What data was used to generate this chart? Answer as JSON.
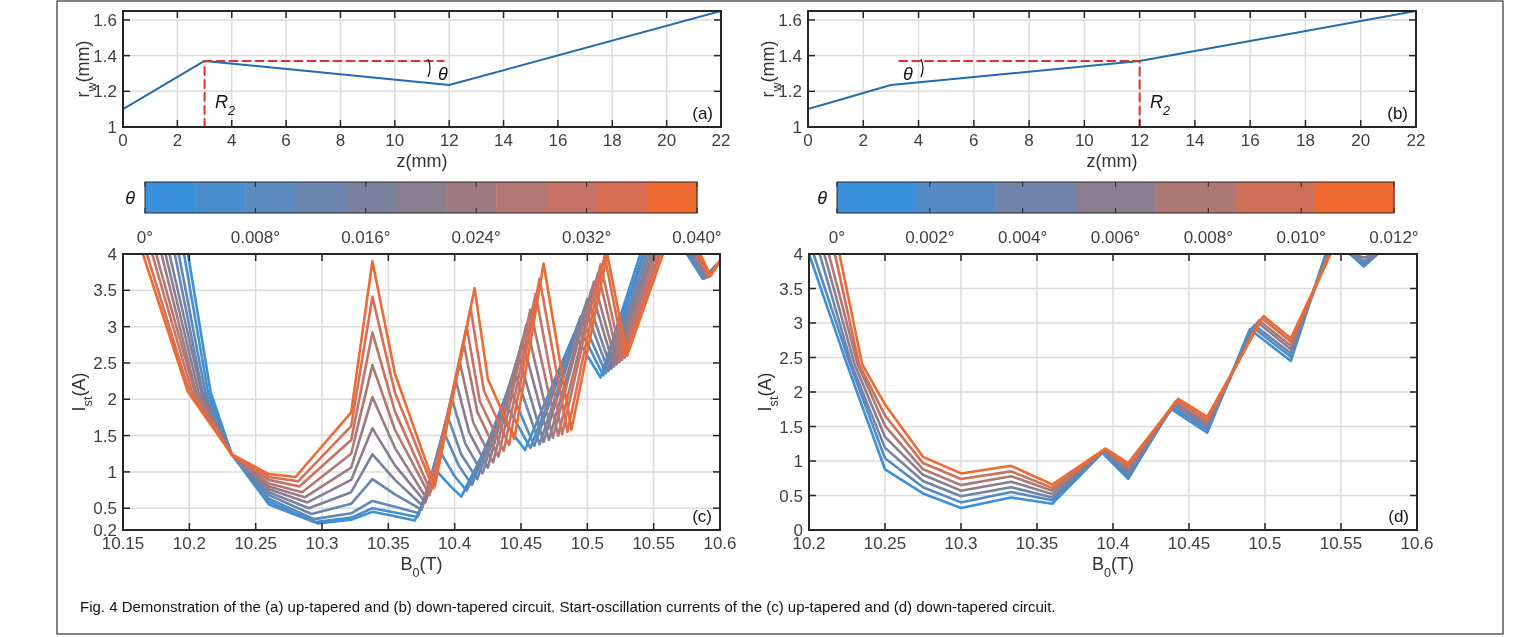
{
  "chart_data": [
    {
      "type": "line",
      "xlabel": "z(mm)",
      "ylabel": "r$_{w}$(mm)",
      "xlim": [
        0,
        22
      ],
      "ylim": [
        1,
        1.65
      ],
      "xticks": [
        0,
        2,
        4,
        6,
        8,
        10,
        12,
        14,
        16,
        18,
        20,
        22
      ],
      "yticks": [
        1,
        1.2,
        1.4,
        1.6
      ],
      "grid": true,
      "series": [
        {
          "color": "#1f6cb0",
          "x": [
            0,
            3,
            12,
            22
          ],
          "values": [
            1.1,
            1.37,
            1.235,
            1.65
          ]
        },
        {
          "color": "#e0312a",
          "line_style": "dashed",
          "x": [
            3,
            3,
            11.8
          ],
          "values": [
            1,
            1.37,
            1.37
          ]
        }
      ],
      "annotations": [
        "(a)",
        "θ",
        "R$_{2}$"
      ]
    },
    {
      "type": "line",
      "xlabel": "z(mm)",
      "ylabel": "r$_{w}$(mm)",
      "xlim": [
        0,
        22
      ],
      "ylim": [
        1,
        1.65
      ],
      "xticks": [
        0,
        2,
        4,
        6,
        8,
        10,
        12,
        14,
        16,
        18,
        20,
        22
      ],
      "yticks": [
        1,
        1.2,
        1.4,
        1.6
      ],
      "grid": true,
      "series": [
        {
          "color": "#1f6cb0",
          "x": [
            0,
            3,
            12,
            22
          ],
          "values": [
            1.1,
            1.235,
            1.37,
            1.65
          ]
        },
        {
          "color": "#e0312a",
          "line_style": "dashed",
          "x": [
            3.3,
            12,
            12
          ],
          "values": [
            1.37,
            1.37,
            1
          ]
        }
      ],
      "annotations": [
        "(b)",
        "θ",
        "R$_{2}$"
      ]
    },
    {
      "type": "line",
      "xlabel": "B$_{0}$(T)",
      "ylabel": "I$_{st}$(A)",
      "clabel": "θ",
      "clim": [
        0,
        0.04
      ],
      "cticks": [
        {
          "value": 0,
          "label": "0°"
        },
        {
          "value": 0.008,
          "label": "0.008°"
        },
        {
          "value": 0.016,
          "label": "0.016°"
        },
        {
          "value": 0.024,
          "label": "0.024°"
        },
        {
          "value": 0.032,
          "label": "0.032°"
        },
        {
          "value": 0.04,
          "label": "0.040°"
        }
      ],
      "xlim": [
        10.15,
        10.6
      ],
      "ylim": [
        0.2,
        4
      ],
      "xticks": [
        10.15,
        10.2,
        10.25,
        10.3,
        10.35,
        10.4,
        10.45,
        10.5,
        10.55,
        10.6
      ],
      "yticks": [
        0.2,
        0.5,
        1,
        1.5,
        2,
        2.5,
        3,
        3.5,
        4
      ],
      "grid": true,
      "series": [
        {
          "color": "#3a90db",
          "x": [
            10.199,
            10.216,
            10.232,
            10.26,
            10.297,
            10.322,
            10.338,
            10.355,
            10.37,
            10.387,
            10.397,
            10.405,
            10.435,
            10.453,
            10.49,
            10.51,
            10.54,
            10.565,
            10.575,
            10.587,
            10.6
          ],
          "values": [
            4,
            2.1,
            1.24,
            0.55,
            0.29,
            0.34,
            0.45,
            0.39,
            0.33,
            1.0,
            0.8,
            0.66,
            1.75,
            1.3,
            2.9,
            2.3,
            4,
            null,
            4,
            3.66,
            3.9
          ]
        },
        {
          "color": "#4a8dcc",
          "x": [
            10.196,
            10.214,
            10.232,
            10.26,
            10.295,
            10.322,
            10.338,
            10.355,
            10.372,
            10.39,
            10.4,
            10.409,
            10.438,
            10.457,
            10.493,
            10.512,
            10.542,
            10.565,
            10.576,
            10.588,
            10.6
          ],
          "values": [
            4,
            2.1,
            1.24,
            0.59,
            0.31,
            0.37,
            0.5,
            0.44,
            0.38,
            1.25,
            0.94,
            0.74,
            1.96,
            1.33,
            3.02,
            2.33,
            4,
            null,
            4,
            3.66,
            3.9
          ]
        },
        {
          "color": "#5a89bd",
          "x": [
            10.192,
            10.212,
            10.232,
            10.26,
            10.294,
            10.322,
            10.338,
            10.355,
            10.373,
            10.393,
            10.403,
            10.413,
            10.441,
            10.46,
            10.495,
            10.514,
            10.543,
            10.565,
            10.577,
            10.588,
            10.6
          ],
          "values": [
            4,
            2.1,
            1.24,
            0.63,
            0.35,
            0.43,
            0.6,
            0.52,
            0.43,
            1.5,
            1.09,
            0.82,
            2.17,
            1.36,
            3.14,
            2.36,
            4,
            null,
            4,
            3.67,
            3.9
          ]
        },
        {
          "color": "#6a85ae",
          "x": [
            10.189,
            10.21,
            10.232,
            10.26,
            10.292,
            10.322,
            10.338,
            10.355,
            10.375,
            10.395,
            10.405,
            10.417,
            10.445,
            10.464,
            10.498,
            10.516,
            10.545,
            10.565,
            10.578,
            10.589,
            10.6
          ],
          "values": [
            4,
            2.1,
            1.24,
            0.68,
            0.42,
            0.56,
            0.9,
            0.69,
            0.48,
            1.75,
            1.24,
            0.9,
            2.39,
            1.38,
            3.26,
            2.39,
            4,
            null,
            4,
            3.67,
            3.9
          ]
        },
        {
          "color": "#7a819f",
          "x": [
            10.185,
            10.209,
            10.232,
            10.26,
            10.29,
            10.322,
            10.338,
            10.355,
            10.376,
            10.398,
            10.408,
            10.421,
            10.448,
            10.467,
            10.5,
            10.518,
            10.547,
            10.565,
            10.579,
            10.589,
            10.6
          ],
          "values": [
            4,
            2.1,
            1.24,
            0.72,
            0.5,
            0.72,
            1.24,
            0.89,
            0.53,
            2.0,
            1.39,
            0.98,
            2.6,
            1.41,
            3.38,
            2.42,
            4,
            null,
            4,
            3.68,
            3.9
          ]
        },
        {
          "color": "#8a7d90",
          "x": [
            10.182,
            10.207,
            10.232,
            10.26,
            10.289,
            10.322,
            10.338,
            10.355,
            10.378,
            10.401,
            10.411,
            10.425,
            10.451,
            10.471,
            10.503,
            10.52,
            10.549,
            10.565,
            10.58,
            10.59,
            10.6
          ],
          "values": [
            4,
            2.1,
            1.24,
            0.76,
            0.58,
            0.89,
            1.6,
            1.09,
            0.58,
            2.25,
            1.54,
            1.06,
            2.81,
            1.44,
            3.5,
            2.45,
            4,
            null,
            4,
            3.68,
            3.9
          ]
        },
        {
          "color": "#9e7a82",
          "x": [
            10.179,
            10.205,
            10.232,
            10.26,
            10.287,
            10.322,
            10.338,
            10.355,
            10.379,
            10.404,
            10.414,
            10.429,
            10.454,
            10.474,
            10.505,
            10.522,
            10.55,
            10.565,
            10.581,
            10.591,
            10.6
          ],
          "values": [
            4,
            2.1,
            1.24,
            0.8,
            0.65,
            1.06,
            2.03,
            1.33,
            0.63,
            2.5,
            1.68,
            1.13,
            3.02,
            1.47,
            3.62,
            2.48,
            4,
            null,
            4,
            3.68,
            3.9
          ]
        },
        {
          "color": "#b27673",
          "x": [
            10.175,
            10.204,
            10.232,
            10.26,
            10.285,
            10.322,
            10.338,
            10.355,
            10.381,
            10.407,
            10.417,
            10.433,
            10.457,
            10.478,
            10.508,
            10.524,
            10.552,
            10.565,
            10.582,
            10.591,
            10.6
          ],
          "values": [
            4,
            2.1,
            1.24,
            0.84,
            0.72,
            1.25,
            2.47,
            1.58,
            0.68,
            2.75,
            1.83,
            1.21,
            3.23,
            1.5,
            3.74,
            2.51,
            4,
            null,
            4,
            3.69,
            3.9
          ]
        },
        {
          "color": "#c67264",
          "x": [
            10.172,
            10.202,
            10.232,
            10.26,
            10.283,
            10.322,
            10.338,
            10.355,
            10.382,
            10.409,
            10.419,
            10.437,
            10.461,
            10.481,
            10.51,
            10.526,
            10.554,
            10.565,
            10.583,
            10.592,
            10.6
          ],
          "values": [
            4,
            2.1,
            1.24,
            0.89,
            0.8,
            1.44,
            2.92,
            1.83,
            0.73,
            3.0,
            1.97,
            1.29,
            3.45,
            1.52,
            3.86,
            2.54,
            4,
            null,
            4,
            3.69,
            3.9
          ]
        },
        {
          "color": "#da6e55",
          "x": [
            10.168,
            10.2,
            10.232,
            10.26,
            10.282,
            10.322,
            10.338,
            10.355,
            10.384,
            10.412,
            10.422,
            10.441,
            10.464,
            10.485,
            10.513,
            10.528,
            10.555,
            10.565,
            10.584,
            10.592,
            10.6
          ],
          "values": [
            4,
            2.1,
            1.24,
            0.93,
            0.87,
            1.63,
            3.41,
            2.09,
            0.77,
            3.25,
            2.12,
            1.37,
            3.66,
            1.55,
            3.98,
            2.57,
            4,
            null,
            4,
            3.7,
            3.9
          ]
        },
        {
          "color": "#ee6a30",
          "x": [
            10.165,
            10.199,
            10.232,
            10.26,
            10.28,
            10.322,
            10.338,
            10.355,
            10.385,
            10.415,
            10.425,
            10.445,
            10.467,
            10.488,
            10.515,
            10.53,
            10.557,
            10.565,
            10.585,
            10.593,
            10.6
          ],
          "values": [
            4,
            2.1,
            1.24,
            0.97,
            0.93,
            1.82,
            3.9,
            2.35,
            0.8,
            3.53,
            2.28,
            1.45,
            3.87,
            1.58,
            4,
            2.6,
            4,
            null,
            4,
            3.7,
            3.9
          ]
        }
      ],
      "annotations": [
        "(c)"
      ]
    },
    {
      "type": "line",
      "xlabel": "B$_{0}$(T)",
      "ylabel": "I$_{st}$(A)",
      "clabel": "θ",
      "clim": [
        0,
        0.012
      ],
      "cticks": [
        {
          "value": 0,
          "label": "0°"
        },
        {
          "value": 0.002,
          "label": "0.002°"
        },
        {
          "value": 0.004,
          "label": "0.004°"
        },
        {
          "value": 0.006,
          "label": "0.006°"
        },
        {
          "value": 0.008,
          "label": "0.008°"
        },
        {
          "value": 0.01,
          "label": "0.010°"
        },
        {
          "value": 0.012,
          "label": "0.012°"
        }
      ],
      "xlim": [
        10.2,
        10.6
      ],
      "ylim": [
        0,
        4
      ],
      "xticks": [
        10.2,
        10.25,
        10.3,
        10.35,
        10.4,
        10.45,
        10.5,
        10.55,
        10.6
      ],
      "yticks": [
        0,
        0.5,
        1,
        1.5,
        2,
        2.5,
        3,
        3.5,
        4
      ],
      "grid": true,
      "series": [
        {
          "color": "#3a90db",
          "x": [
            10.2,
            10.225,
            10.25,
            10.275,
            10.3,
            10.333,
            10.36,
            10.393,
            10.41,
            10.438,
            10.462,
            10.49,
            10.517,
            10.54,
            10.55,
            10.556,
            10.565,
            10.574
          ],
          "values": [
            4,
            2.4,
            0.88,
            0.53,
            0.32,
            0.47,
            0.38,
            1.12,
            0.74,
            1.76,
            1.41,
            2.91,
            2.45,
            4,
            null,
            4,
            3.82,
            4
          ]
        },
        {
          "color": "#5589c2",
          "x": [
            10.203,
            10.227,
            10.25,
            10.275,
            10.3,
            10.333,
            10.36,
            10.393,
            10.41,
            10.439,
            10.462,
            10.492,
            10.517,
            10.54,
            10.55,
            10.556,
            10.565,
            10.574
          ],
          "values": [
            4,
            2.4,
            1.04,
            0.62,
            0.4,
            0.55,
            0.43,
            1.13,
            0.78,
            1.78,
            1.45,
            2.94,
            2.51,
            4,
            null,
            4,
            3.86,
            4
          ]
        },
        {
          "color": "#7083a8",
          "x": [
            10.207,
            10.228,
            10.25,
            10.275,
            10.3,
            10.333,
            10.36,
            10.394,
            10.41,
            10.44,
            10.462,
            10.493,
            10.517,
            10.541,
            10.55,
            10.556,
            10.565,
            10.574
          ],
          "values": [
            4,
            2.4,
            1.19,
            0.71,
            0.49,
            0.62,
            0.47,
            1.14,
            0.82,
            1.81,
            1.49,
            2.97,
            2.56,
            4,
            null,
            4,
            3.9,
            4
          ]
        },
        {
          "color": "#8a7d90",
          "x": [
            10.21,
            10.23,
            10.25,
            10.275,
            10.3,
            10.333,
            10.36,
            10.394,
            10.41,
            10.441,
            10.462,
            10.495,
            10.517,
            10.542,
            10.55,
            10.556,
            10.565,
            10.574
          ],
          "values": [
            4,
            2.4,
            1.35,
            0.8,
            0.57,
            0.7,
            0.52,
            1.15,
            0.86,
            1.83,
            1.53,
            3.01,
            2.62,
            4,
            null,
            4,
            3.95,
            4
          ]
        },
        {
          "color": "#ad7775",
          "x": [
            10.213,
            10.232,
            10.25,
            10.275,
            10.3,
            10.333,
            10.36,
            10.394,
            10.41,
            10.441,
            10.462,
            10.496,
            10.517,
            10.542
          ],
          "values": [
            4,
            2.4,
            1.51,
            0.88,
            0.65,
            0.78,
            0.57,
            1.16,
            0.89,
            1.85,
            1.56,
            3.04,
            2.67,
            4
          ]
        },
        {
          "color": "#cd7057",
          "x": [
            10.217,
            10.233,
            10.25,
            10.275,
            10.3,
            10.333,
            10.36,
            10.395,
            10.41,
            10.442,
            10.462,
            10.498,
            10.517,
            10.543
          ],
          "values": [
            4,
            2.4,
            1.66,
            0.97,
            0.74,
            0.85,
            0.61,
            1.17,
            0.93,
            1.88,
            1.6,
            3.07,
            2.73,
            4
          ]
        },
        {
          "color": "#ee6a30",
          "x": [
            10.22,
            10.235,
            10.25,
            10.275,
            10.3,
            10.333,
            10.36,
            10.395,
            10.41,
            10.443,
            10.462,
            10.499,
            10.517,
            10.543
          ],
          "values": [
            4,
            2.4,
            1.82,
            1.06,
            0.82,
            0.93,
            0.66,
            1.18,
            0.97,
            1.9,
            1.64,
            3.1,
            2.78,
            4
          ]
        }
      ],
      "annotations": [
        "(d)",
        "Fig. 4 Demonstration of the (a) up-tapered and (b) down-tapered circuit. Start-oscillation currents of the (c) up-tapered and (d) down-tapered circuit."
      ]
    }
  ]
}
